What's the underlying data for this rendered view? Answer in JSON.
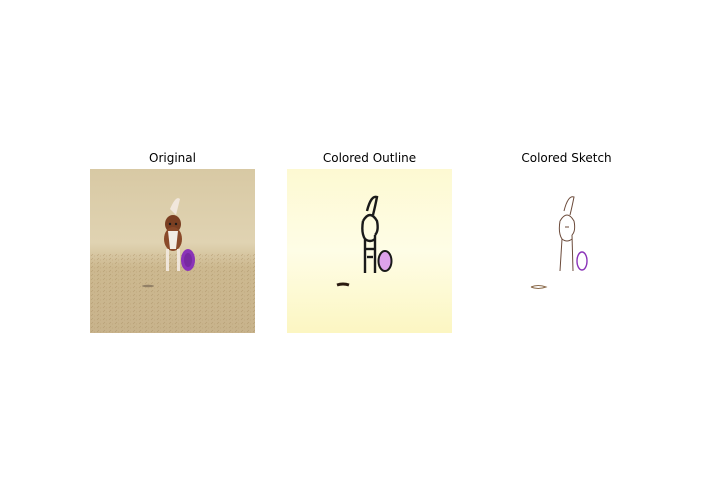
{
  "figure": {
    "panels": [
      {
        "title": "Original"
      },
      {
        "title": "Colored Outline"
      },
      {
        "title": "Colored Sketch"
      }
    ]
  },
  "colors": {
    "sand": "#d9c9a3",
    "outline_bg": "#fdf9cf",
    "dog_brown": "#8a4a2a",
    "frisbee_purple": "#8a33b8",
    "frisbee_light": "#d79ae6",
    "sketch_line": "#6b4a3a"
  }
}
